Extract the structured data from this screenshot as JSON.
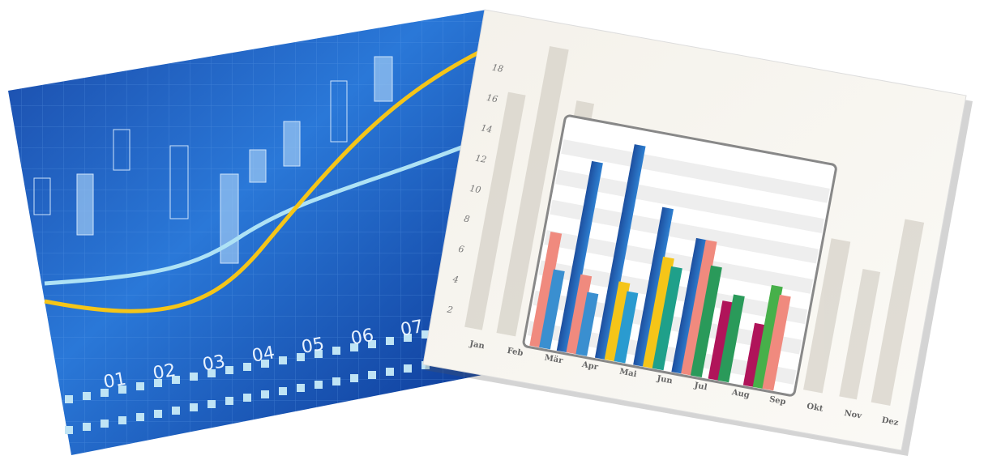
{
  "left_panel": {
    "x_labels": [
      "01",
      "02",
      "03",
      "04",
      "05",
      "06",
      "07"
    ]
  },
  "right_panel": {
    "y_labels": [
      18,
      16,
      14,
      12,
      10,
      8,
      6,
      4,
      2
    ],
    "months": [
      "Jan",
      "Feb",
      "Mär",
      "Apr",
      "Mai",
      "Jun",
      "Jul",
      "Aug",
      "Sep",
      "Okt",
      "Nov",
      "Dez"
    ]
  }
}
